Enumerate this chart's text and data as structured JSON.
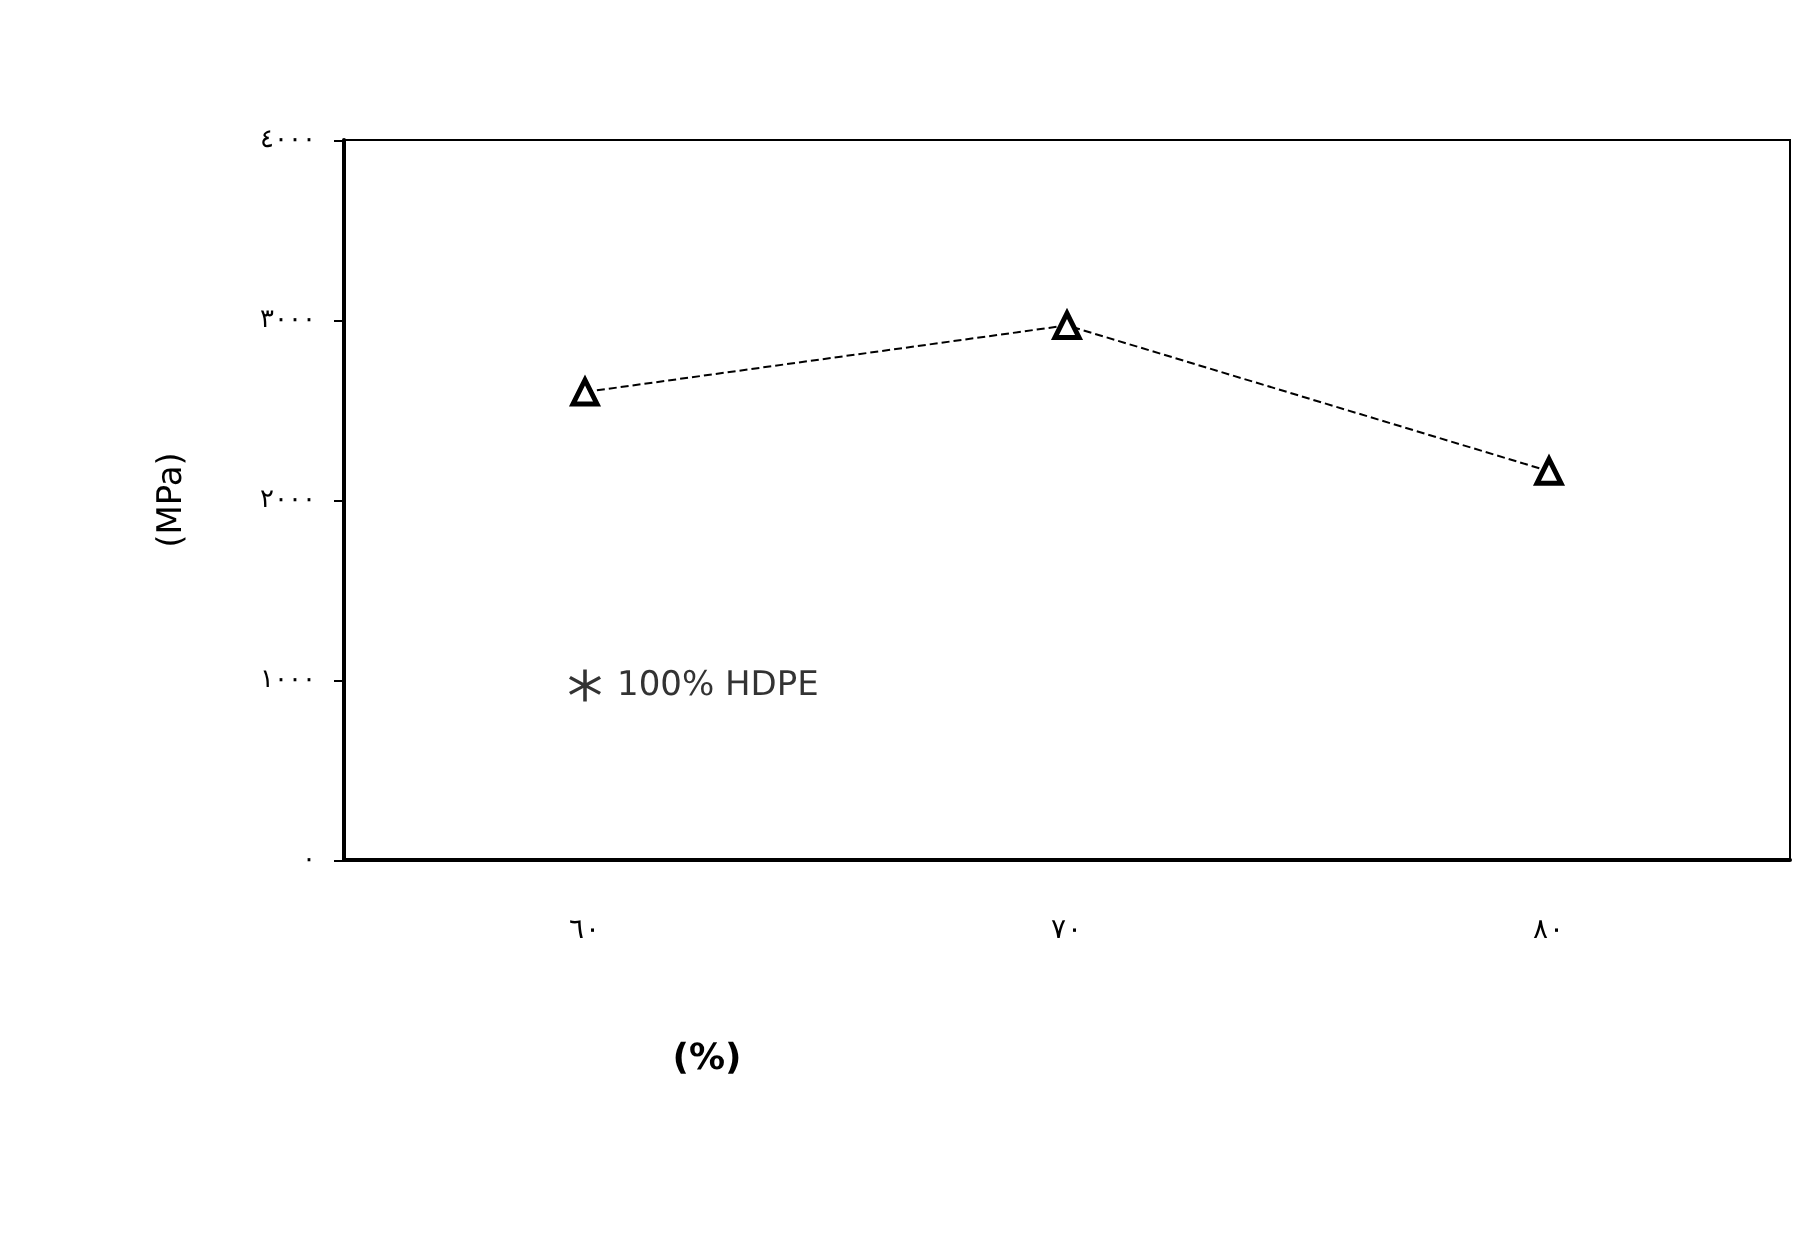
{
  "chart_data": {
    "type": "line",
    "xlabel": "(%)",
    "ylabel": "(MPa)",
    "categories": [
      "٦٠",
      "٧٠",
      "٨٠"
    ],
    "series": [
      {
        "color": "#000000",
        "values": [
          2600,
          2970,
          2160
        ],
        "marker": "triangle",
        "line_style": "dashed"
      },
      {
        "type": "scatter",
        "name": "100% HDPE",
        "color": "#000000",
        "x": [
          "٦٠"
        ],
        "values": [
          970
        ],
        "marker": "star"
      }
    ],
    "ylim": [
      0,
      4000
    ],
    "yticks": [
      {
        "value": 0,
        "label": "٠"
      },
      {
        "value": 1000,
        "label": "١٠٠٠"
      },
      {
        "value": 2000,
        "label": "٢٠٠٠"
      },
      {
        "value": 3000,
        "label": "٣٠٠٠"
      },
      {
        "value": 4000,
        "label": "٤٠٠٠"
      }
    ],
    "grid": false,
    "legend": false
  }
}
